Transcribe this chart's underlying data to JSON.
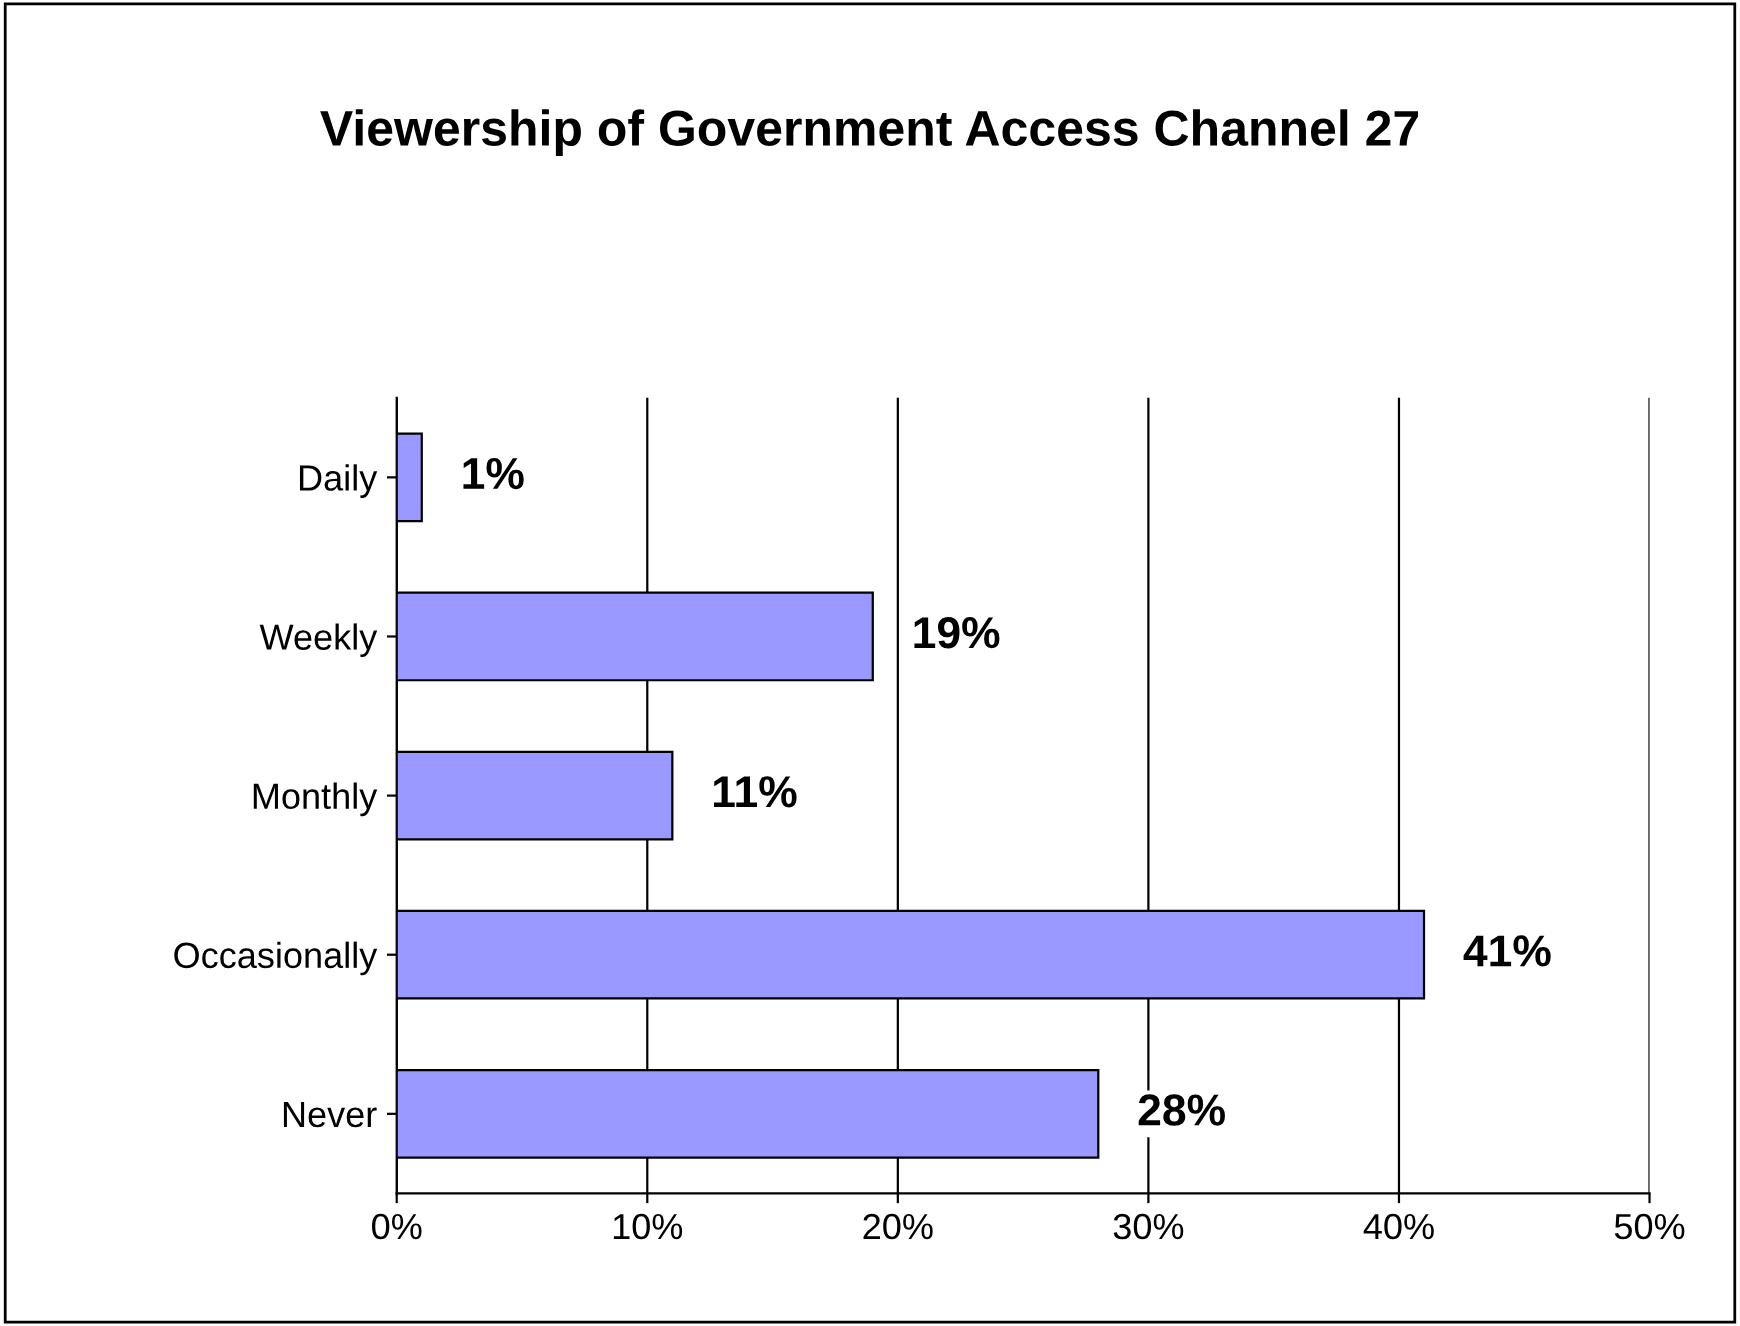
{
  "chart_data": {
    "type": "bar",
    "orientation": "horizontal",
    "title": "Viewership of Government Access Channel 27",
    "categories": [
      "Daily",
      "Weekly",
      "Monthly",
      "Occasionally",
      "Never"
    ],
    "values": [
      1,
      19,
      11,
      41,
      28
    ],
    "value_labels": [
      "1%",
      "19%",
      "11%",
      "41%",
      "28%"
    ],
    "color": "#9999ff",
    "xlim": [
      0,
      50
    ],
    "xticks": [
      {
        "value": 0,
        "label": "0%"
      },
      {
        "value": 10,
        "label": "10%"
      },
      {
        "value": 20,
        "label": "20%"
      },
      {
        "value": 30,
        "label": "30%"
      },
      {
        "value": 40,
        "label": "40%"
      },
      {
        "value": 50,
        "label": "50%"
      }
    ],
    "grid": "x",
    "legend": false
  }
}
